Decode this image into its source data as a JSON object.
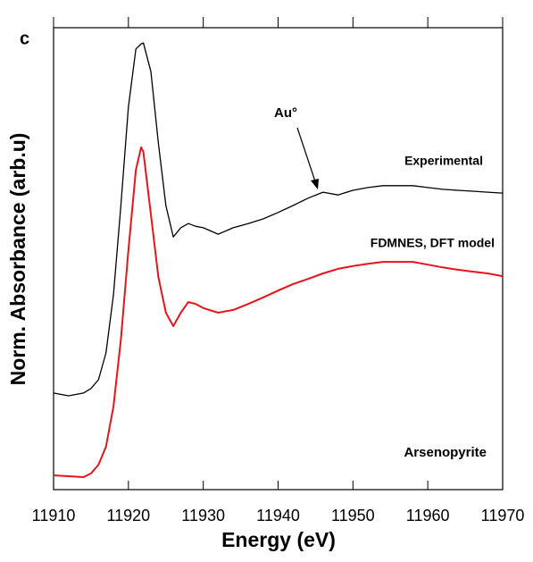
{
  "chart_data": {
    "type": "line",
    "panel_label": "c",
    "xlabel": "Energy (eV)",
    "ylabel": "Norm. Absorbance (arb.u)",
    "annotations": [
      "Au°",
      "Arsenopyrite"
    ],
    "x": [
      11910,
      11912,
      11914,
      11915,
      11916,
      11917,
      11918,
      11919,
      11920,
      11921,
      11921.7,
      11922,
      11923,
      11924,
      11925,
      11926,
      11927,
      11928,
      11929,
      11930,
      11932,
      11934,
      11936,
      11938,
      11940,
      11942,
      11944,
      11946,
      11948,
      11950,
      11952,
      11954,
      11956,
      11958,
      11960,
      11962,
      11964,
      11966,
      11968,
      11970
    ],
    "series": [
      {
        "name": "Experimental",
        "color": "#000000",
        "values": [
          0.209,
          0.203,
          0.209,
          0.219,
          0.238,
          0.296,
          0.422,
          0.615,
          0.828,
          0.954,
          0.965,
          0.967,
          0.905,
          0.75,
          0.615,
          0.547,
          0.567,
          0.576,
          0.57,
          0.567,
          0.553,
          0.567,
          0.576,
          0.586,
          0.6,
          0.615,
          0.631,
          0.644,
          0.638,
          0.648,
          0.654,
          0.658,
          0.658,
          0.658,
          0.654,
          0.65,
          0.648,
          0.646,
          0.644,
          0.642
        ]
      },
      {
        "name": "FDMNES, DFT model",
        "color": "#e8141c",
        "values": [
          0.031,
          0.029,
          0.027,
          0.035,
          0.054,
          0.093,
          0.18,
          0.325,
          0.518,
          0.692,
          0.741,
          0.731,
          0.596,
          0.46,
          0.383,
          0.354,
          0.383,
          0.406,
          0.402,
          0.393,
          0.383,
          0.389,
          0.402,
          0.416,
          0.431,
          0.445,
          0.456,
          0.468,
          0.478,
          0.484,
          0.489,
          0.493,
          0.493,
          0.493,
          0.487,
          0.481,
          0.476,
          0.472,
          0.468,
          0.462
        ]
      }
    ],
    "xlim": [
      11910,
      11970
    ],
    "xticks": [
      11910,
      11920,
      11930,
      11940,
      11950,
      11960,
      11970
    ],
    "ylim": [
      0,
      1
    ],
    "grid": false
  }
}
